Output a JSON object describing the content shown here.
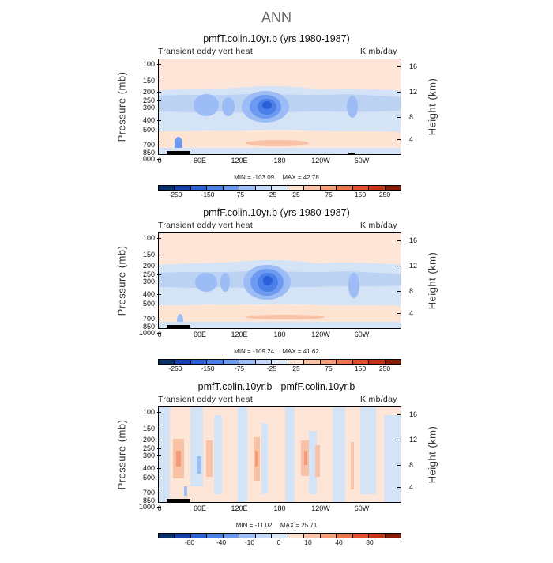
{
  "page_title": "ANN",
  "colors": {
    "palette_note": "blue (negative) to red (positive) diverging",
    "bg_positive_light": "#fde6d8",
    "bg_negative_light": "#d4e3f6"
  },
  "chart_data": [
    {
      "type": "heatmap",
      "title": "pmfT.colin.10yr.b (yrs 1980-1987)",
      "left_title": "Transient eddy vert heat",
      "right_title": "K mb/day",
      "ylabel": "Pressure (mb)",
      "ylabel_right": "Height (km)",
      "yticks": [
        "100",
        "150",
        "200",
        "250",
        "300",
        "400",
        "500",
        "700",
        "850",
        "1000"
      ],
      "yticks_right": [
        "16",
        "12",
        "8",
        "4"
      ],
      "xticks": [
        "0",
        "60E",
        "120E",
        "180",
        "120W",
        "60W"
      ],
      "min_label": "MIN = -103.09",
      "max_label": "MAX = 42.78",
      "levels": [
        "-250",
        "-150",
        "-75",
        "-25",
        "25",
        "75",
        "150",
        "250"
      ],
      "colorbar_colors": [
        "#08306b",
        "#1a3fb0",
        "#2a5fd8",
        "#4a7fe8",
        "#6b9af0",
        "#9bbcf5",
        "#c3d8f9",
        "#dde8fb",
        "#fde3d2",
        "#f9c1a5",
        "#f59b78",
        "#ee744e",
        "#e2512c",
        "#c83216",
        "#8c1c0a"
      ]
    },
    {
      "type": "heatmap",
      "title": "pmfF.colin.10yr.b (yrs 1980-1987)",
      "left_title": "Transient eddy vert heat",
      "right_title": "K mb/day",
      "ylabel": "Pressure (mb)",
      "ylabel_right": "Height (km)",
      "yticks": [
        "100",
        "150",
        "200",
        "250",
        "300",
        "400",
        "500",
        "700",
        "850",
        "1000"
      ],
      "yticks_right": [
        "16",
        "12",
        "8",
        "4"
      ],
      "xticks": [
        "0",
        "60E",
        "120E",
        "180",
        "120W",
        "60W"
      ],
      "min_label": "MIN = -109.24",
      "max_label": "MAX = 41.62",
      "levels": [
        "-250",
        "-150",
        "-75",
        "-25",
        "25",
        "75",
        "150",
        "250"
      ],
      "colorbar_colors": [
        "#08306b",
        "#1a3fb0",
        "#2a5fd8",
        "#4a7fe8",
        "#6b9af0",
        "#9bbcf5",
        "#c3d8f9",
        "#dde8fb",
        "#fde3d2",
        "#f9c1a5",
        "#f59b78",
        "#ee744e",
        "#e2512c",
        "#c83216",
        "#8c1c0a"
      ]
    },
    {
      "type": "heatmap",
      "title": "pmfT.colin.10yr.b - pmfF.colin.10yr.b",
      "left_title": "Transient eddy vert heat",
      "right_title": "K mb/day",
      "ylabel": "Pressure (mb)",
      "ylabel_right": "Height (km)",
      "yticks": [
        "100",
        "150",
        "200",
        "250",
        "300",
        "400",
        "500",
        "700",
        "850",
        "1000"
      ],
      "yticks_right": [
        "16",
        "12",
        "8",
        "4"
      ],
      "xticks": [
        "0",
        "60E",
        "120E",
        "180",
        "120W",
        "60W"
      ],
      "min_label": "MIN = -11.02",
      "max_label": "MAX = 25.71",
      "levels": [
        "-80",
        "-40",
        "-10",
        "0",
        "10",
        "40",
        "80"
      ],
      "colorbar_colors": [
        "#08306b",
        "#1a3fb0",
        "#2a5fd8",
        "#4a7fe8",
        "#6b9af0",
        "#9bbcf5",
        "#c3d8f9",
        "#dde8fb",
        "#fde3d2",
        "#f9c1a5",
        "#f59b78",
        "#ee744e",
        "#e2512c",
        "#c83216",
        "#8c1c0a"
      ]
    }
  ]
}
